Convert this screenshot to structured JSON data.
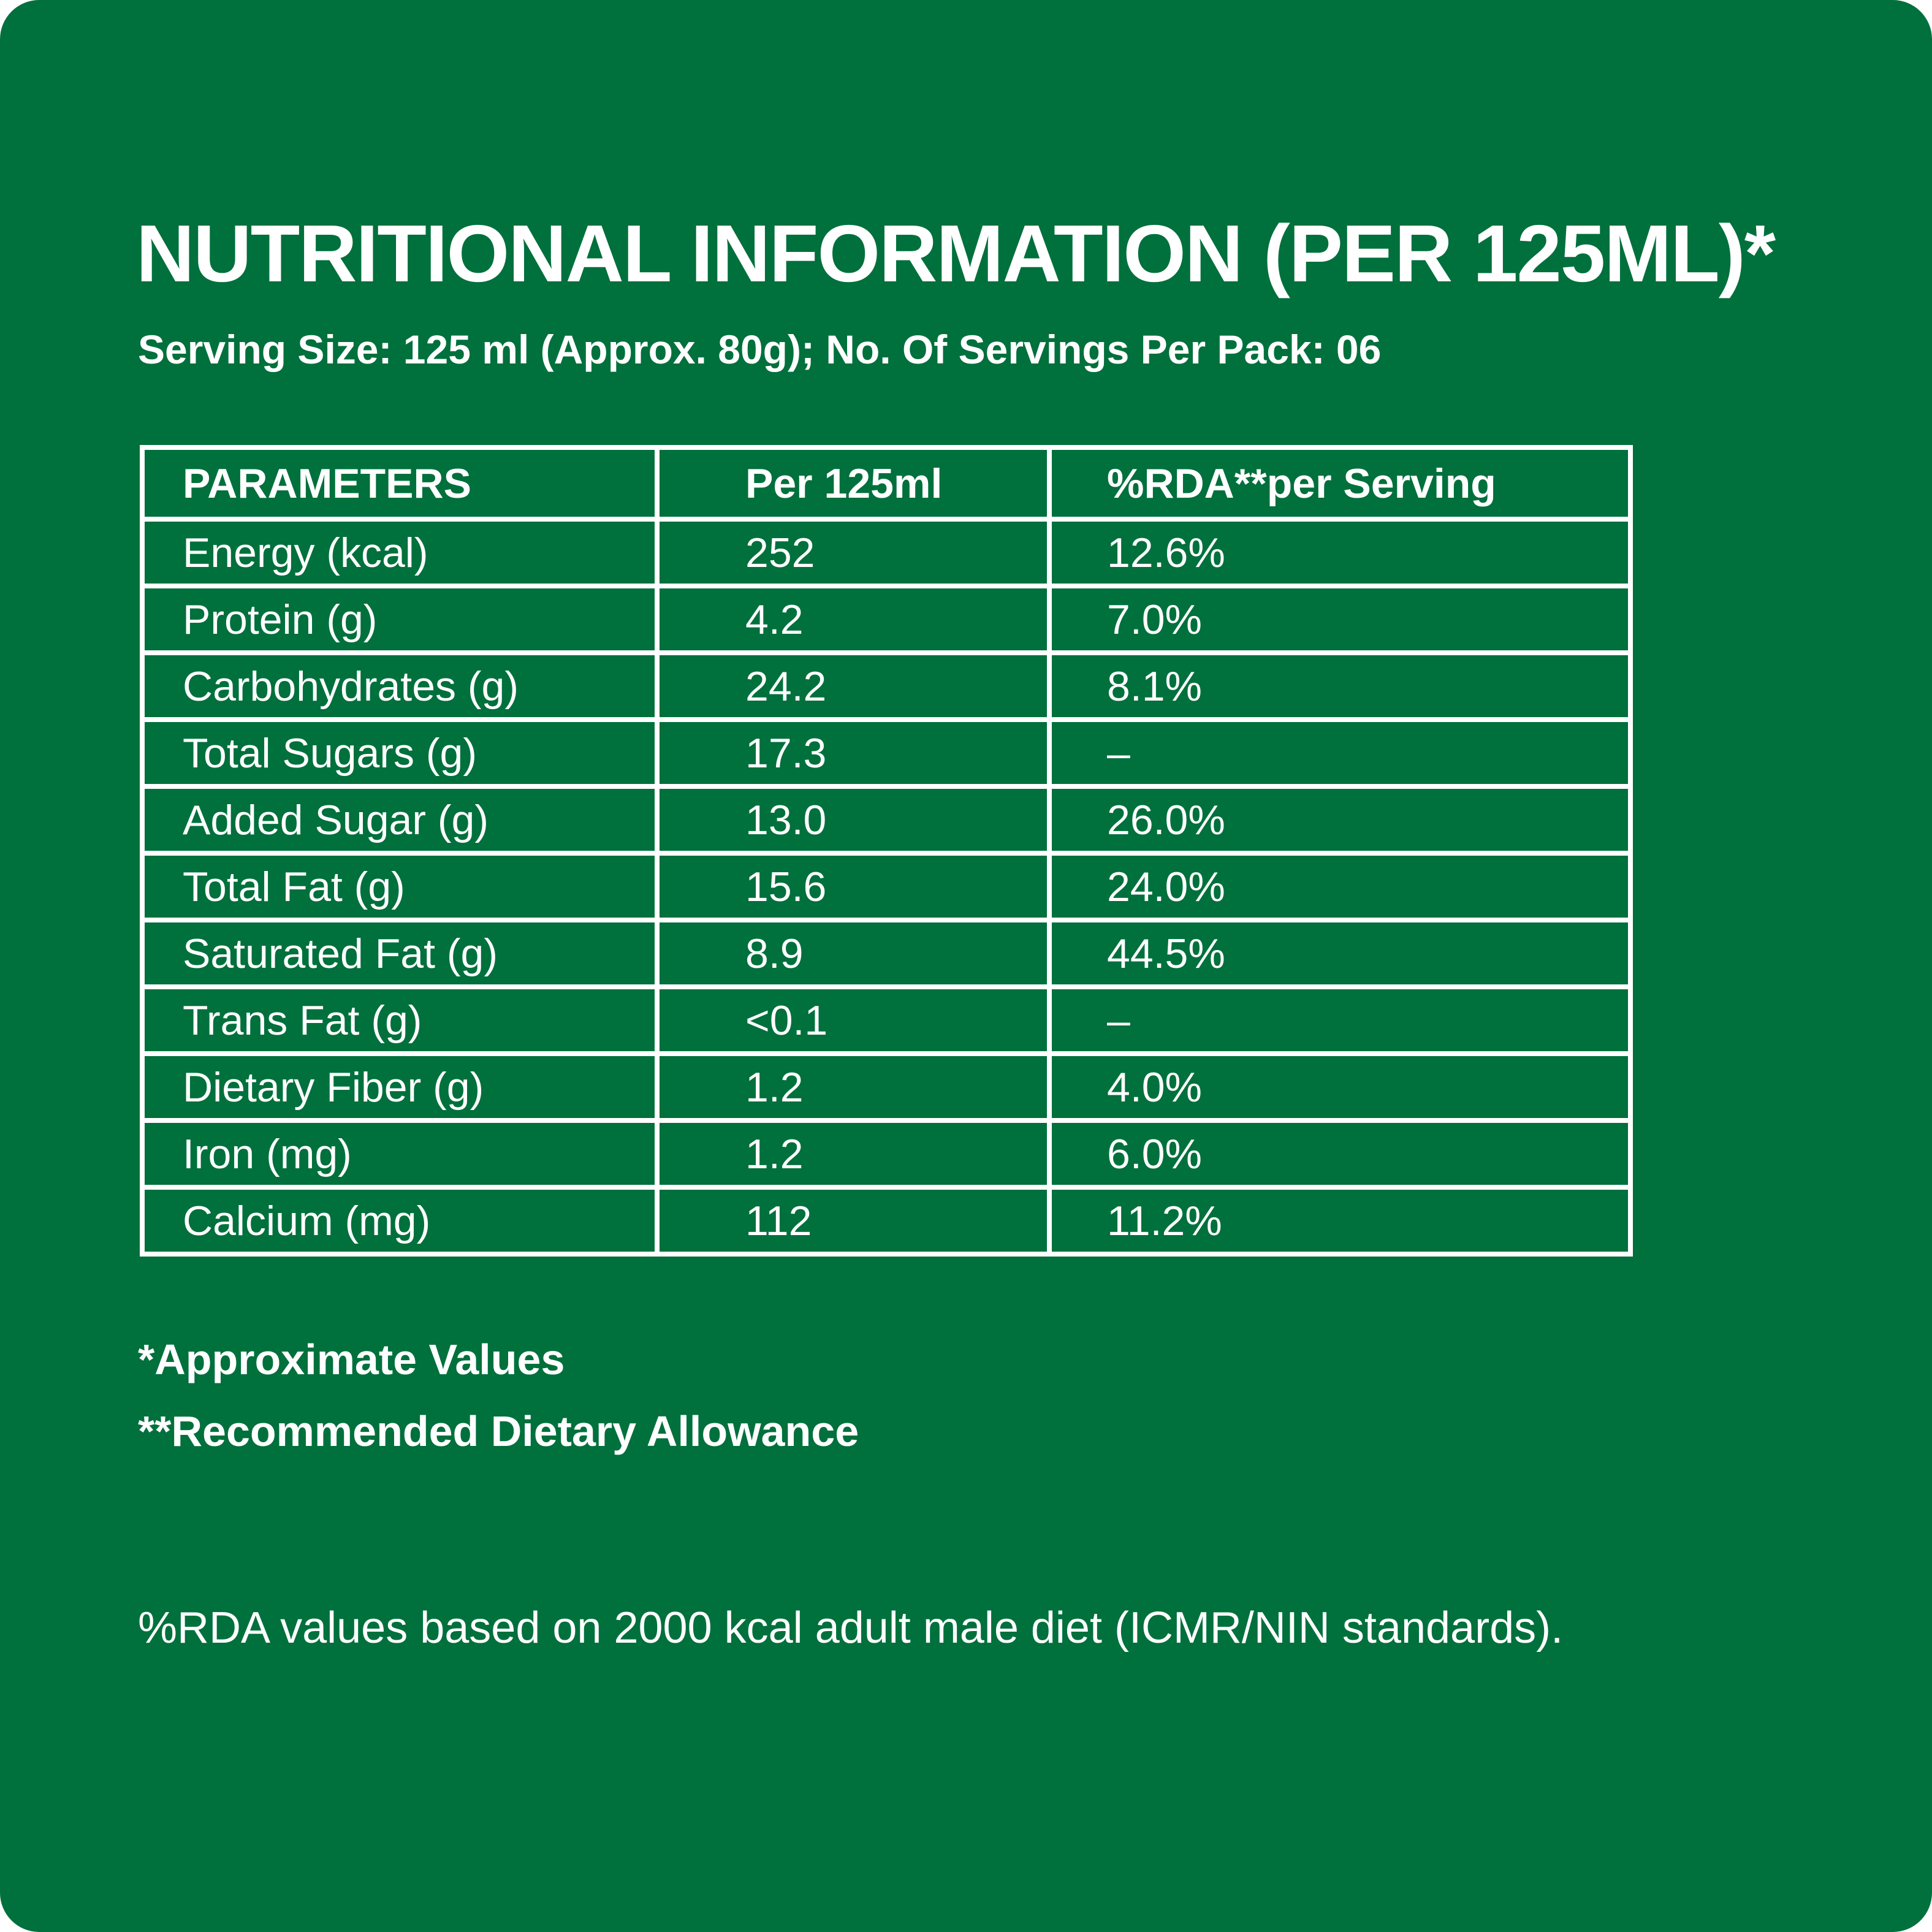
{
  "title": "NUTRITIONAL INFORMATION (PER 125ML)*",
  "subtitle": "Serving Size: 125 ml (Approx. 80g); No. Of Servings Per Pack: 06",
  "table": {
    "headers": [
      "PARAMETERS",
      "Per 125ml",
      "%RDA**per Serving"
    ],
    "rows": [
      [
        "Energy (kcal)",
        "252",
        "12.6%"
      ],
      [
        "Protein (g)",
        "4.2",
        "7.0%"
      ],
      [
        "Carbohydrates (g)",
        "24.2",
        "8.1%"
      ],
      [
        "Total Sugars (g)",
        "17.3",
        "–"
      ],
      [
        "Added Sugar (g)",
        "13.0",
        "26.0%"
      ],
      [
        "Total Fat (g)",
        "15.6",
        "24.0%"
      ],
      [
        "Saturated Fat (g)",
        "8.9",
        "44.5%"
      ],
      [
        "Trans Fat (g)",
        "<0.1",
        "–"
      ],
      [
        "Dietary Fiber (g)",
        "1.2",
        "4.0%"
      ],
      [
        "Iron (mg)",
        "1.2",
        "6.0%"
      ],
      [
        "Calcium (mg)",
        "112",
        "11.2%"
      ]
    ]
  },
  "footnotes": {
    "approx": "*Approximate Values",
    "rda": "**Recommended Dietary Allowance"
  },
  "basis_note": "%RDA values based on 2000 kcal adult male diet (ICMR/NIN standards).",
  "colors": {
    "background": "#00703c",
    "text": "#ffffff"
  }
}
